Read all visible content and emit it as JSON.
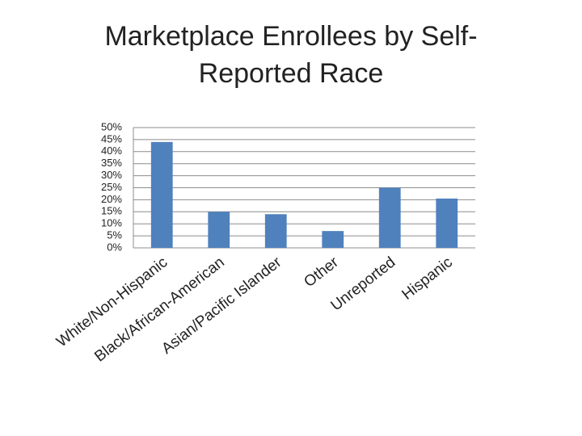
{
  "chart_data": {
    "type": "bar",
    "title": "Marketplace Enrollees by Self-Reported Race",
    "categories": [
      "White/Non-Hispanic",
      "Black/African-American",
      "Asian/Pacific Islander",
      "Other",
      "Unreported",
      "Hispanic"
    ],
    "values": [
      44,
      15,
      14,
      7,
      25,
      20.5
    ],
    "color": "#4f81bd",
    "ylim": [
      0,
      50
    ],
    "yticks": [
      {
        "value": 0,
        "label": "0%"
      },
      {
        "value": 5,
        "label": "5%"
      },
      {
        "value": 10,
        "label": "10%"
      },
      {
        "value": 15,
        "label": "15%"
      },
      {
        "value": 20,
        "label": "20%"
      },
      {
        "value": 25,
        "label": "25%"
      },
      {
        "value": 30,
        "label": "30%"
      },
      {
        "value": 35,
        "label": "35%"
      },
      {
        "value": 40,
        "label": "40%"
      },
      {
        "value": 45,
        "label": "45%"
      },
      {
        "value": 50,
        "label": "50%"
      }
    ],
    "grid": true
  }
}
